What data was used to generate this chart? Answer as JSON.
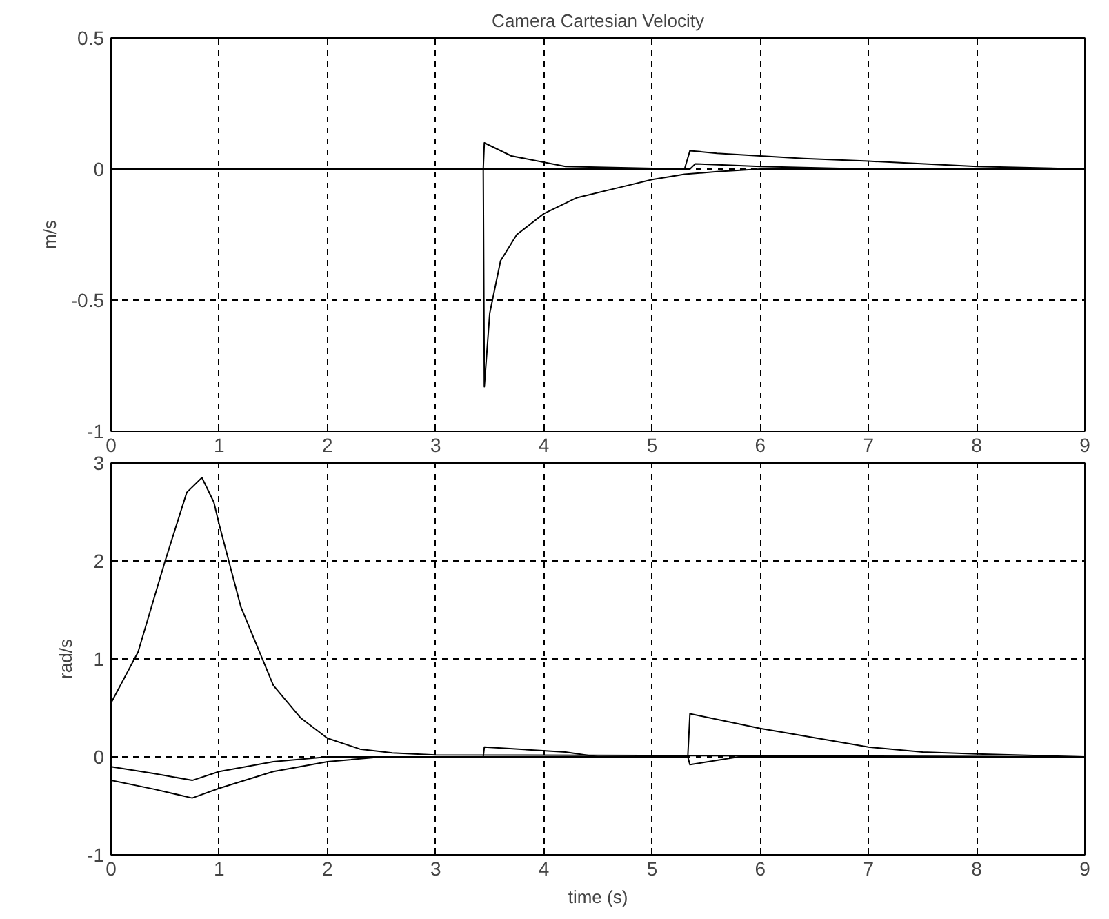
{
  "chart_data": [
    {
      "type": "line",
      "title": "Camera Cartesian Velocity",
      "ylabel": "m/s",
      "xlim": [
        0,
        9
      ],
      "ylim": [
        -1,
        0.5
      ],
      "xticks": [
        0,
        1,
        2,
        3,
        4,
        5,
        6,
        7,
        8,
        9
      ],
      "yticks": [
        -1,
        -0.5,
        0,
        0.5
      ],
      "grid": true,
      "line_style": "solid",
      "series": [
        {
          "color": "#000000",
          "x": [
            0,
            3.44,
            3.45,
            3.5,
            3.6,
            3.75,
            4,
            4.3,
            4.7,
            5,
            5.3,
            5.6,
            6,
            9
          ],
          "values": [
            0,
            0,
            -0.83,
            -0.55,
            -0.35,
            -0.25,
            -0.17,
            -0.11,
            -0.07,
            -0.04,
            -0.02,
            -0.01,
            0,
            0
          ]
        },
        {
          "color": "#000000",
          "x": [
            0,
            3.44,
            3.45,
            3.7,
            4.2,
            5.3,
            5.35,
            5.6,
            6,
            6.4,
            7,
            8,
            9
          ],
          "values": [
            0,
            0,
            0.1,
            0.05,
            0.01,
            0,
            0.07,
            0.06,
            0.05,
            0.04,
            0.03,
            0.01,
            0
          ]
        },
        {
          "color": "#000000",
          "x": [
            0,
            5.35,
            5.4,
            6,
            7,
            9
          ],
          "values": [
            0,
            0,
            0.02,
            0.01,
            0,
            0
          ]
        }
      ]
    },
    {
      "type": "line",
      "xlabel": "time (s)",
      "ylabel": "rad/s",
      "xlim": [
        0,
        9
      ],
      "ylim": [
        -1,
        3
      ],
      "xticks": [
        0,
        1,
        2,
        3,
        4,
        5,
        6,
        7,
        8,
        9
      ],
      "yticks": [
        -1,
        0,
        1,
        2,
        3
      ],
      "grid": true,
      "line_style": "solid",
      "series": [
        {
          "color": "#000000",
          "x": [
            0,
            0.25,
            0.5,
            0.7,
            0.84,
            0.95,
            1,
            1.2,
            1.5,
            1.75,
            2,
            2.3,
            2.6,
            3,
            9
          ],
          "values": [
            0.55,
            1.07,
            2.0,
            2.7,
            2.85,
            2.6,
            2.37,
            1.53,
            0.73,
            0.4,
            0.19,
            0.08,
            0.04,
            0.02,
            0
          ]
        },
        {
          "color": "#000000",
          "x": [
            0,
            0.4,
            0.75,
            1,
            1.5,
            2,
            3.44,
            3.45,
            4.2,
            4.5,
            5.33,
            5.35,
            5.8,
            9
          ],
          "values": [
            -0.1,
            -0.17,
            -0.24,
            -0.15,
            -0.05,
            0,
            0,
            0.1,
            0.05,
            0,
            0,
            -0.08,
            0,
            0
          ]
        },
        {
          "color": "#000000",
          "x": [
            0,
            0.4,
            0.75,
            1,
            1.5,
            2,
            2.5,
            5.33,
            5.35,
            6,
            7,
            7.5,
            8,
            9
          ],
          "values": [
            -0.24,
            -0.33,
            -0.42,
            -0.32,
            -0.15,
            -0.05,
            0,
            0,
            0.44,
            0.29,
            0.1,
            0.05,
            0.03,
            0
          ]
        }
      ]
    }
  ]
}
